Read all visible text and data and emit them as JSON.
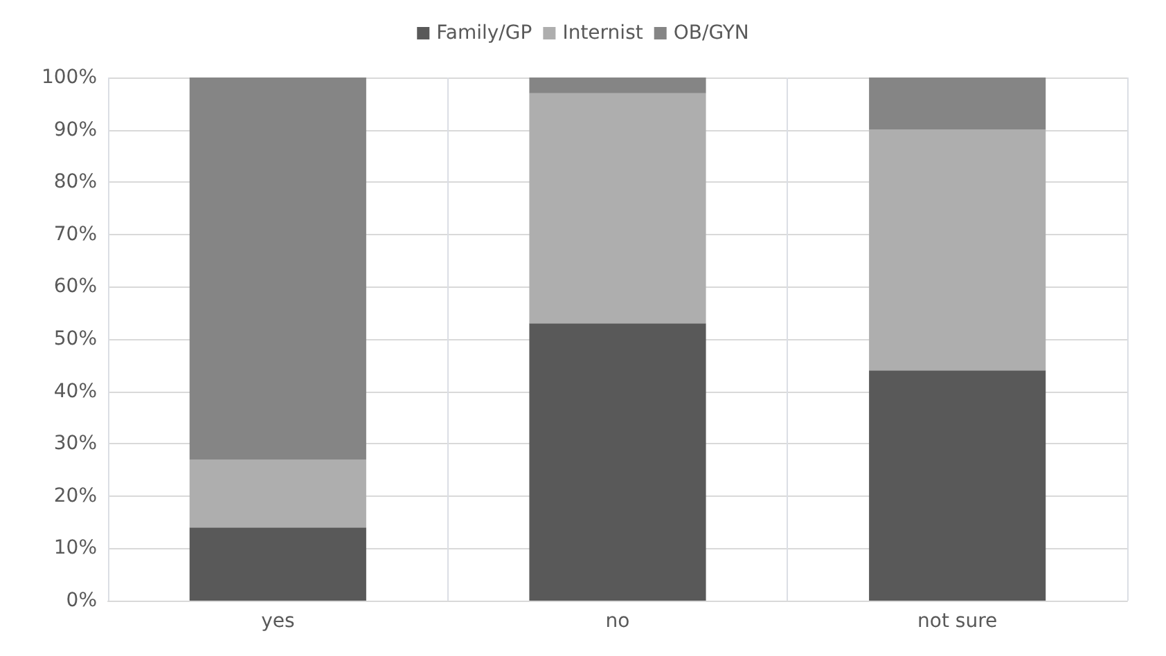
{
  "chart_data": {
    "type": "bar",
    "stacked": true,
    "categories": [
      "yes",
      "no",
      "not sure"
    ],
    "series": [
      {
        "name": "Family/GP",
        "color": "#595959",
        "values": [
          14,
          53,
          44
        ]
      },
      {
        "name": "Internist",
        "color": "#aeaeae",
        "values": [
          13,
          44,
          46
        ]
      },
      {
        "name": "OB/GYN",
        "color": "#858585",
        "values": [
          73,
          3,
          10
        ]
      }
    ],
    "ylim": [
      0,
      100
    ],
    "yticks": [
      {
        "value": 0,
        "label": "0%"
      },
      {
        "value": 10,
        "label": "10%"
      },
      {
        "value": 20,
        "label": "20%"
      },
      {
        "value": 30,
        "label": "30%"
      },
      {
        "value": 40,
        "label": "40%"
      },
      {
        "value": 50,
        "label": "50%"
      },
      {
        "value": 60,
        "label": "60%"
      },
      {
        "value": 70,
        "label": "70%"
      },
      {
        "value": 80,
        "label": "80%"
      },
      {
        "value": 90,
        "label": "90%"
      },
      {
        "value": 100,
        "label": "100%"
      }
    ],
    "grid": true,
    "legend": "top"
  }
}
